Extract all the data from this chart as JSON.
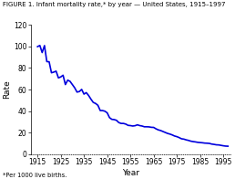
{
  "title": "FIGURE 1. Infant mortality rate,* by year — United States, 1915–1997",
  "xlabel": "Year",
  "ylabel": "Rate",
  "footnote": "*Per 1000 live births.",
  "line_color": "#0000dd",
  "background_color": "#ffffff",
  "ylim": [
    0,
    120
  ],
  "yticks": [
    0,
    20,
    40,
    60,
    80,
    100,
    120
  ],
  "xticks": [
    1915,
    1925,
    1935,
    1945,
    1955,
    1965,
    1975,
    1985,
    1995
  ],
  "xlim": [
    1912,
    1998
  ],
  "years": [
    1915,
    1916,
    1917,
    1918,
    1919,
    1920,
    1921,
    1922,
    1923,
    1924,
    1925,
    1926,
    1927,
    1928,
    1929,
    1930,
    1931,
    1932,
    1933,
    1934,
    1935,
    1936,
    1937,
    1938,
    1939,
    1940,
    1941,
    1942,
    1943,
    1944,
    1945,
    1946,
    1947,
    1948,
    1949,
    1950,
    1951,
    1952,
    1953,
    1954,
    1955,
    1956,
    1957,
    1958,
    1959,
    1960,
    1961,
    1962,
    1963,
    1964,
    1965,
    1966,
    1967,
    1968,
    1969,
    1970,
    1971,
    1972,
    1973,
    1974,
    1975,
    1976,
    1977,
    1978,
    1979,
    1980,
    1981,
    1982,
    1983,
    1984,
    1985,
    1986,
    1987,
    1988,
    1989,
    1990,
    1991,
    1992,
    1993,
    1994,
    1995,
    1996,
    1997
  ],
  "rates": [
    99.9,
    101.0,
    94.4,
    100.9,
    86.0,
    85.8,
    75.6,
    76.2,
    77.1,
    70.8,
    71.7,
    73.3,
    64.6,
    68.7,
    67.6,
    64.6,
    61.6,
    57.6,
    58.1,
    60.1,
    55.7,
    57.1,
    54.4,
    51.0,
    48.0,
    47.0,
    45.3,
    40.4,
    40.4,
    39.8,
    38.3,
    33.8,
    32.2,
    32.0,
    31.3,
    29.2,
    28.4,
    28.4,
    27.8,
    26.6,
    26.4,
    26.0,
    26.3,
    27.1,
    26.4,
    26.0,
    25.3,
    25.3,
    25.2,
    24.8,
    24.7,
    23.4,
    22.4,
    21.8,
    20.9,
    20.0,
    19.1,
    18.5,
    17.7,
    16.7,
    16.1,
    15.2,
    14.1,
    13.8,
    13.1,
    12.6,
    11.9,
    11.5,
    11.2,
    10.8,
    10.6,
    10.4,
    10.1,
    10.0,
    9.8,
    9.2,
    8.9,
    8.5,
    8.4,
    8.0,
    7.6,
    7.3,
    7.2
  ],
  "title_fontsize": 5.0,
  "label_fontsize": 6.5,
  "tick_fontsize": 5.5,
  "footnote_fontsize": 4.8,
  "linewidth": 1.2
}
